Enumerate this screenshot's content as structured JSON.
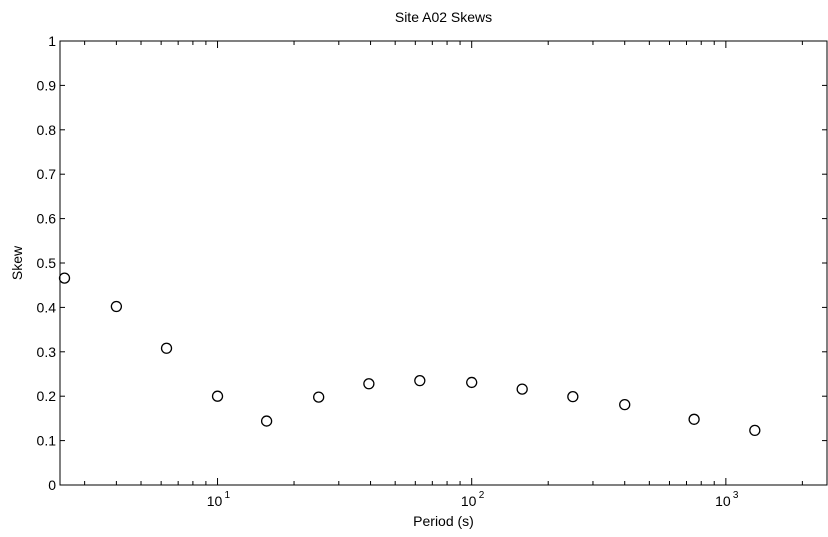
{
  "chart_data": {
    "type": "scatter",
    "title": "Site A02 Skews",
    "xlabel": "Period (s)",
    "ylabel": "Skew",
    "xscale": "log",
    "xlim": [
      2.4,
      2500
    ],
    "ylim": [
      0,
      1
    ],
    "grid": false,
    "legend": "none",
    "marker": "open-circle",
    "marker_color": "#000000",
    "yticks": [
      "0",
      "0.1",
      "0.2",
      "0.3",
      "0.4",
      "0.5",
      "0.6",
      "0.7",
      "0.8",
      "0.9",
      "1"
    ],
    "xticks": [
      {
        "base": "10",
        "exp": "1",
        "value": 10
      },
      {
        "base": "10",
        "exp": "2",
        "value": 100
      },
      {
        "base": "10",
        "exp": "3",
        "value": 1000
      }
    ],
    "points": [
      {
        "x": 2.5,
        "y": 0.466
      },
      {
        "x": 4.0,
        "y": 0.402
      },
      {
        "x": 6.3,
        "y": 0.308
      },
      {
        "x": 10,
        "y": 0.2
      },
      {
        "x": 15.6,
        "y": 0.144
      },
      {
        "x": 25,
        "y": 0.198
      },
      {
        "x": 39.4,
        "y": 0.228
      },
      {
        "x": 62.5,
        "y": 0.235
      },
      {
        "x": 100,
        "y": 0.231
      },
      {
        "x": 158,
        "y": 0.216
      },
      {
        "x": 250,
        "y": 0.199
      },
      {
        "x": 400,
        "y": 0.181
      },
      {
        "x": 750,
        "y": 0.148
      },
      {
        "x": 1300,
        "y": 0.123
      }
    ]
  }
}
